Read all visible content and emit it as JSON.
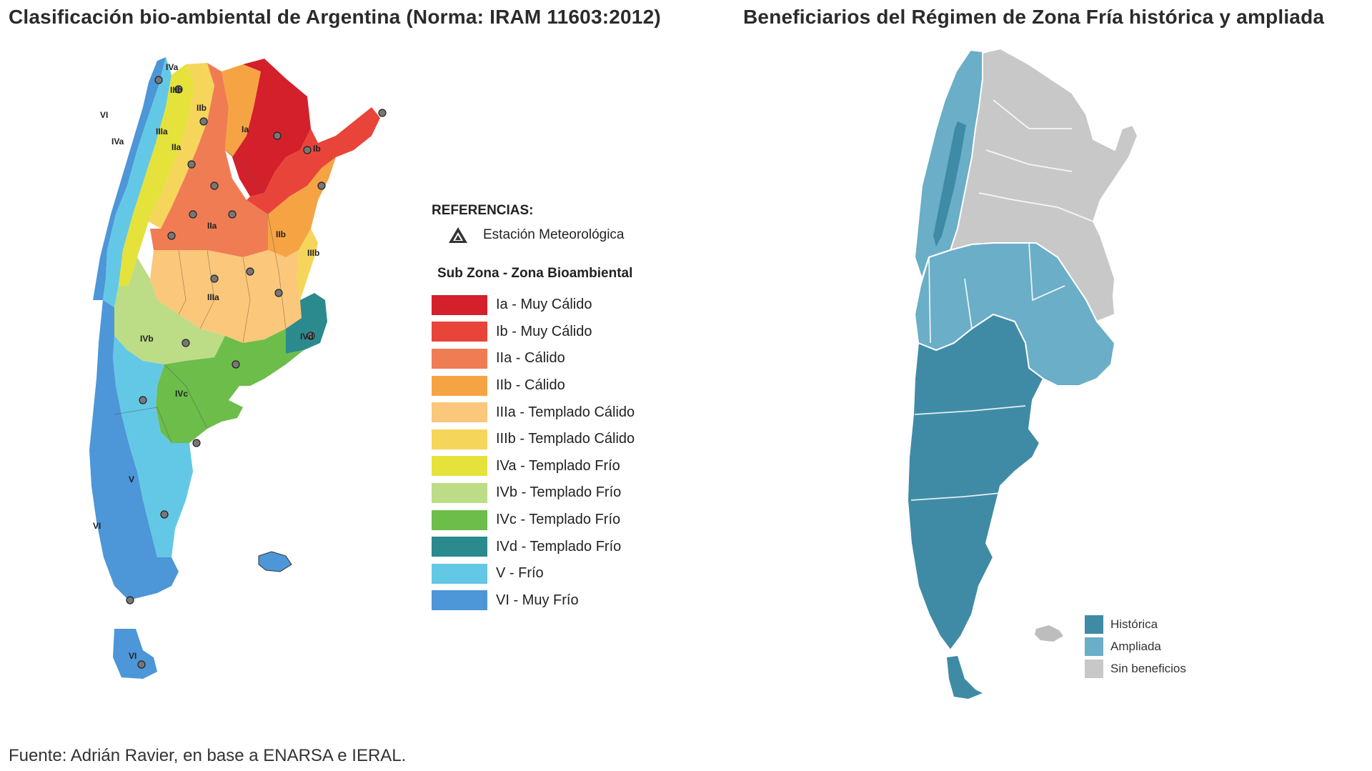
{
  "left_map": {
    "title": "Clasificación bio-ambiental de Argentina (Norma: IRAM 11603:2012)",
    "legend": {
      "references_title": "REFERENCIAS:",
      "station_label": "Estación Meteorológica",
      "station_icon": "triangle-station-icon",
      "subzone_title": "Sub Zona - Zona Bioambiental",
      "zones": [
        {
          "label": "Ia - Muy Cálido",
          "color": "#d4202b"
        },
        {
          "label": "Ib - Muy Cálido",
          "color": "#e8443a"
        },
        {
          "label": "IIa - Cálido",
          "color": "#f07c54"
        },
        {
          "label": "IIb - Cálido",
          "color": "#f6a443"
        },
        {
          "label": "IIIa - Templado Cálido",
          "color": "#fbc77a"
        },
        {
          "label": "IIIb - Templado Cálido",
          "color": "#f5d55a"
        },
        {
          "label": "IVa - Templado Frío",
          "color": "#e4e23b"
        },
        {
          "label": "IVb - Templado Frío",
          "color": "#bcdc86"
        },
        {
          "label": "IVc - Templado Frío",
          "color": "#6cbd4a"
        },
        {
          "label": "IVd - Templado Frío",
          "color": "#2b8a8d"
        },
        {
          "label": "V - Frío",
          "color": "#63c8e6"
        },
        {
          "label": "VI - Muy Frío",
          "color": "#4d96d8"
        }
      ]
    },
    "map_labels": [
      "IVa",
      "IIIb",
      "IIb",
      "VI",
      "IIIa",
      "Ia",
      "IVa",
      "IIa",
      "Ib",
      "IIa",
      "IIb",
      "IIIb",
      "IIIa",
      "IVb",
      "IVd",
      "IVc",
      "V",
      "VI",
      "VI"
    ]
  },
  "right_map": {
    "title": "Beneficiarios del Régimen de Zona Fría histórica y ampliada",
    "legend": [
      {
        "label": "Histórica",
        "color": "#3f8ba5"
      },
      {
        "label": "Ampliada",
        "color": "#6aaec7"
      },
      {
        "label": "Sin beneficios",
        "color": "#c8c8c8"
      }
    ]
  },
  "source": "Fuente: Adrián Ravier, en base a ENARSA e IERAL."
}
